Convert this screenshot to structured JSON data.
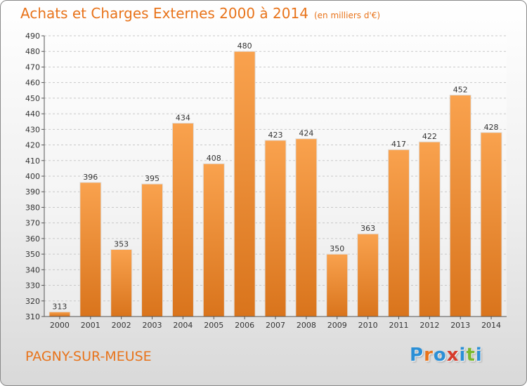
{
  "header": {
    "title": "Achats et Charges Externes 2000 à 2014",
    "unit": "(en milliers d'€)"
  },
  "footer": {
    "place": "PAGNY-SUR-MEUSE",
    "logo_text": "Proxiti",
    "logo_colors": [
      "#2b8fd6",
      "#e8731a",
      "#2b8fd6",
      "#d63a2b",
      "#2b8fd6",
      "#7ab82e",
      "#2b8fd6"
    ]
  },
  "colors": {
    "accent": "#e8731a",
    "bar_top": "#f9a24e",
    "bar_bottom": "#d9741c"
  },
  "chart_data": {
    "type": "bar",
    "categories": [
      "2000",
      "2001",
      "2002",
      "2003",
      "2004",
      "2005",
      "2006",
      "2007",
      "2008",
      "2009",
      "2010",
      "2011",
      "2012",
      "2013",
      "2014"
    ],
    "values": [
      313,
      396,
      353,
      395,
      434,
      408,
      480,
      423,
      424,
      350,
      363,
      417,
      422,
      452,
      428
    ],
    "title": "Achats et Charges Externes 2000 à 2014",
    "ylim": [
      310,
      490
    ],
    "yticks": [
      310,
      320,
      330,
      340,
      350,
      360,
      370,
      380,
      390,
      400,
      410,
      420,
      430,
      440,
      450,
      460,
      470,
      480,
      490
    ],
    "grid": true,
    "data_labels": true
  }
}
